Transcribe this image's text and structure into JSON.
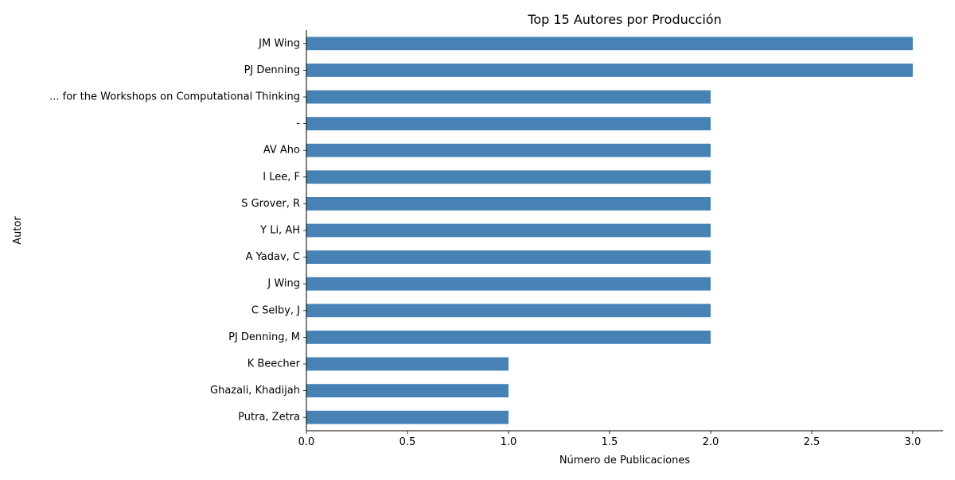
{
  "chart_data": {
    "type": "bar",
    "orientation": "horizontal",
    "title": "Top 15 Autores por Producción",
    "xlabel": "Número de Publicaciones",
    "ylabel": "Autor",
    "xlim": [
      0,
      3.15
    ],
    "xticks": [
      0.0,
      0.5,
      1.0,
      1.5,
      2.0,
      2.5,
      3.0
    ],
    "xtick_labels": [
      "0.0",
      "0.5",
      "1.0",
      "1.5",
      "2.0",
      "2.5",
      "3.0"
    ],
    "categories": [
      "JM Wing",
      "PJ Denning",
      "... for the Workshops on  Computational Thinking",
      "-",
      "AV Aho",
      "I Lee, F",
      "S Grover, R",
      "Y Li, AH",
      "A Yadav, C",
      "J Wing",
      "C Selby, J",
      "PJ Denning, M",
      "K Beecher",
      "Ghazali, Khadijah",
      "Putra, Zetra"
    ],
    "values": [
      3,
      3,
      2,
      2,
      2,
      2,
      2,
      2,
      2,
      2,
      2,
      2,
      1,
      1,
      1
    ],
    "bar_color": "#4682b4",
    "grid": false,
    "legend": "none"
  }
}
